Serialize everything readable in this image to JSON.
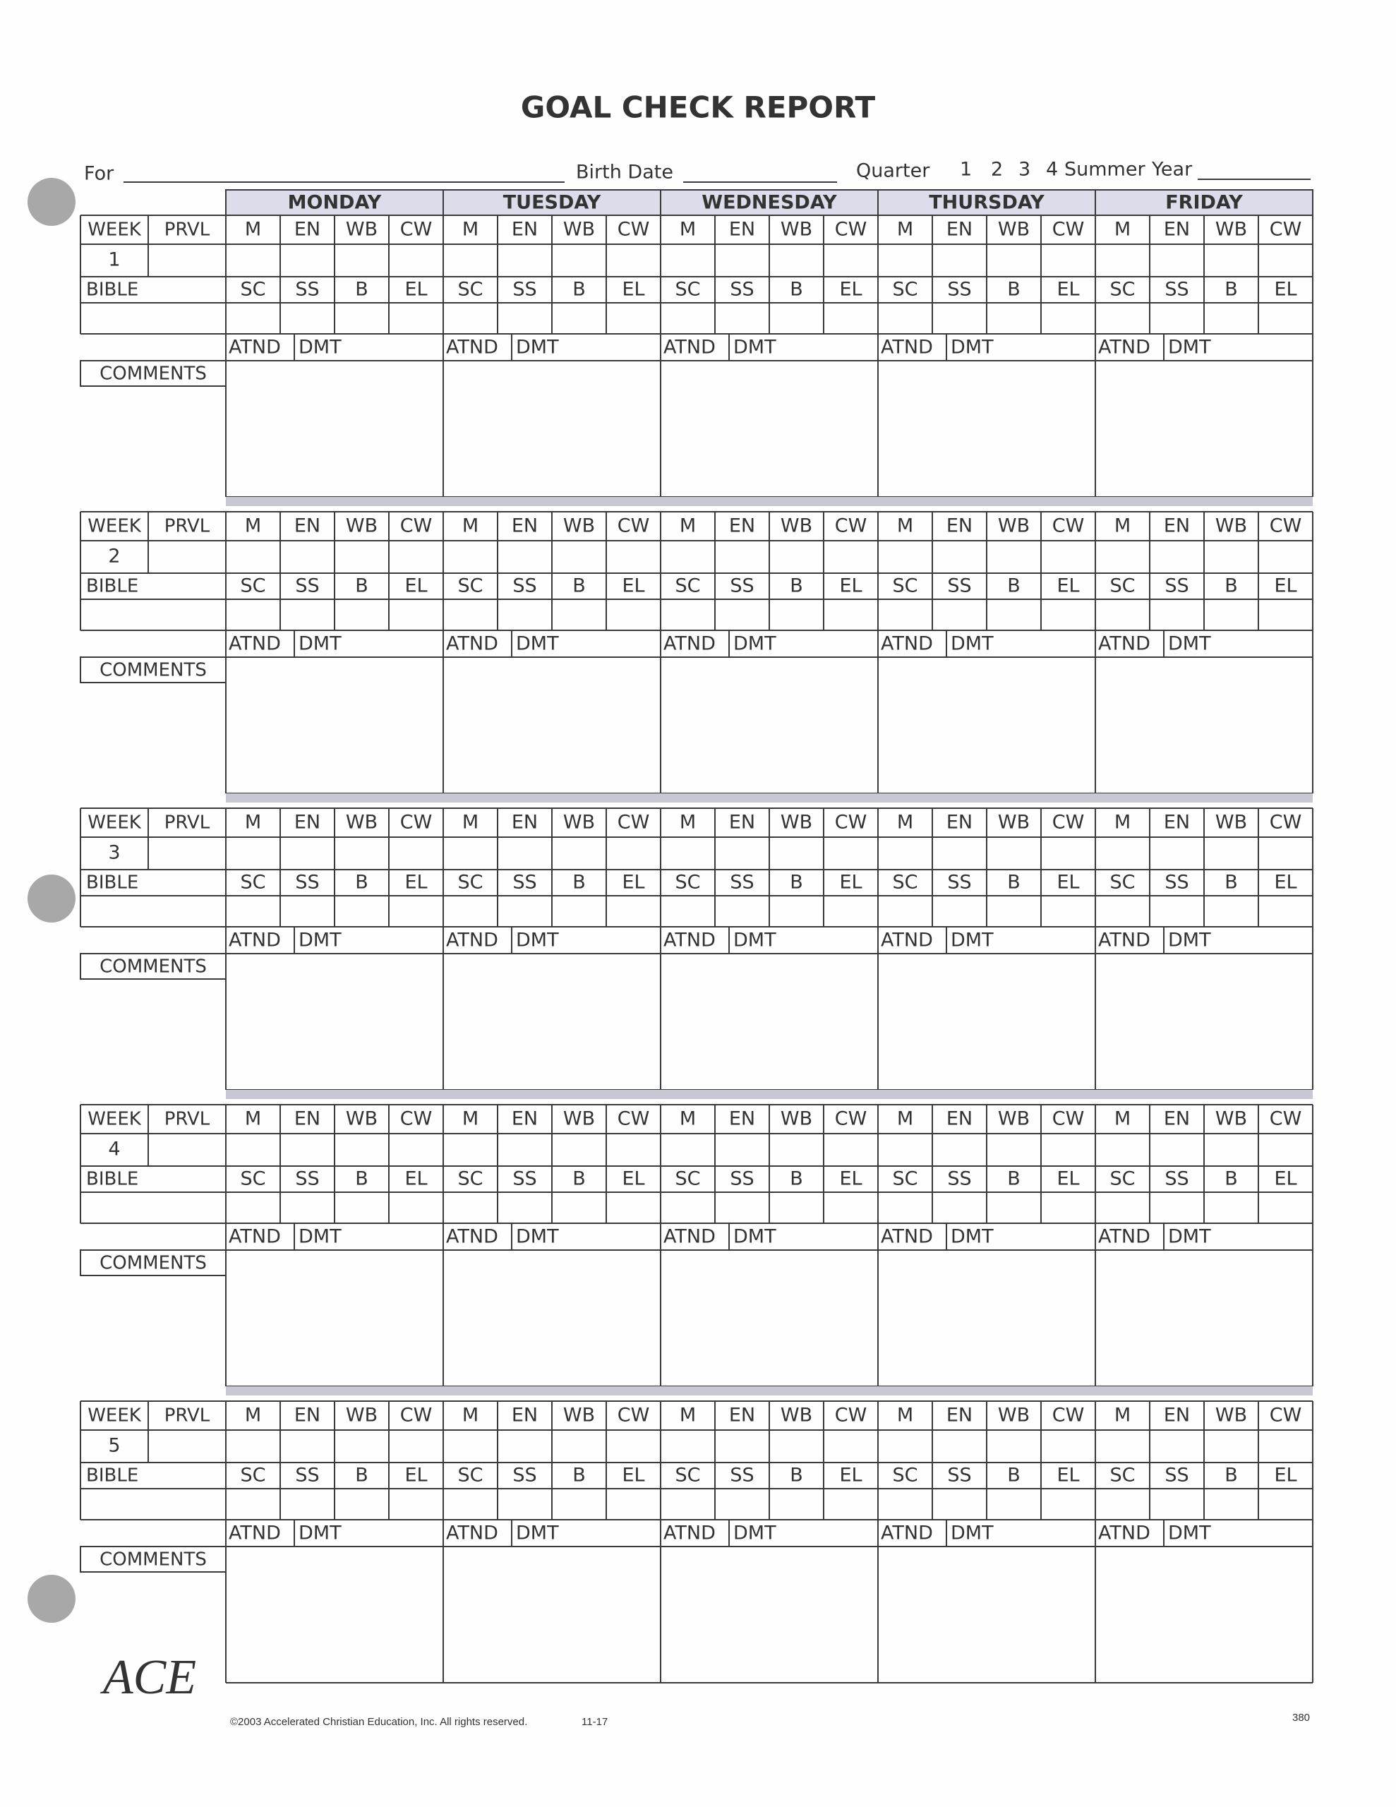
{
  "header": {
    "title": "GOAL CHECK REPORT",
    "fields": {
      "for": "For",
      "birth_date": "Birth Date",
      "quarter": "Quarter",
      "quarter_options": [
        "1",
        "2",
        "3",
        "4",
        "Summer"
      ],
      "year": "Year"
    }
  },
  "days": [
    "MONDAY",
    "TUESDAY",
    "WEDNESDAY",
    "THURSDAY",
    "FRIDAY"
  ],
  "row_labels": {
    "week": "WEEK",
    "prvl": "PRVL",
    "bible": "BIBLE",
    "comments": "COMMENTS"
  },
  "subjects": [
    "M",
    "EN",
    "WB",
    "CW"
  ],
  "bible_subjects": [
    "SC",
    "SS",
    "B",
    "EL"
  ],
  "attendance": [
    "ATND",
    "DMT"
  ],
  "weeks": [
    "1",
    "2",
    "3",
    "4",
    "5"
  ],
  "footer": {
    "logo": "ACE",
    "copyright": "©2003 Accelerated Christian Education, Inc. All rights reserved.",
    "code": "11-17",
    "page_number": "380"
  }
}
